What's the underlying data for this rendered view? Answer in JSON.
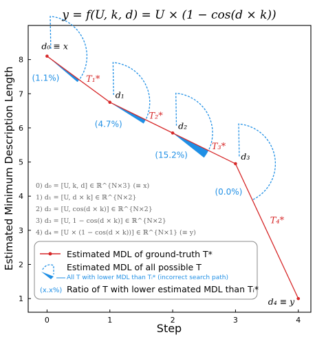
{
  "chart_data": {
    "type": "line",
    "title": "y = f(U, k, d) = U × (1 − cos(d × k))",
    "xlabel": "Step",
    "ylabel": "Estimated Minimum Description Length",
    "xlim": [
      -0.3,
      4.2
    ],
    "ylim": [
      0.6,
      9.0
    ],
    "x_ticks": [
      "0",
      "1",
      "2",
      "3",
      "4"
    ],
    "y_ticks": [
      "1",
      "2",
      "3",
      "4",
      "5",
      "6",
      "7",
      "8"
    ],
    "grid": false,
    "series": [
      {
        "name": "Estimated MDL of ground-truth T*",
        "x": [
          0,
          1,
          2,
          3,
          4
        ],
        "y": [
          8.1,
          6.75,
          5.85,
          4.95,
          1.0
        ],
        "color": "#d62728"
      }
    ],
    "point_labels": [
      {
        "label": "d₀ ≡ x",
        "x": 0,
        "y": 8.1
      },
      {
        "label": "d₁",
        "x": 1,
        "y": 6.75
      },
      {
        "label": "d₂",
        "x": 2,
        "y": 5.85
      },
      {
        "label": "d₃",
        "x": 3,
        "y": 4.95
      },
      {
        "label": "d₄ ≡ y",
        "x": 4,
        "y": 1.0
      }
    ],
    "segment_labels": [
      "T₁*",
      "T₂*",
      "T₃*",
      "T₄*"
    ],
    "ratios": [
      {
        "step": 0,
        "text": "(1.1%)",
        "value": 1.1
      },
      {
        "step": 1,
        "text": "(4.7%)",
        "value": 4.7
      },
      {
        "step": 2,
        "text": "(15.2%)",
        "value": 15.2
      },
      {
        "step": 3,
        "text": "(0.0%)",
        "value": 0.0
      }
    ],
    "annotations": [
      "0) d₀ = [U, k, d] ∈ ℝ^{N×3} (≡ x)",
      "1) d₁ = [U, d × k] ∈ ℝ^{N×2}",
      "2) d₂ = [U, cos(d × k)] ∈ ℝ^{N×2}",
      "3) d₃ = [U, 1 − cos(d × k)] ∈ ℝ^{N×2}",
      "4) d₄ = [U × (1 − cos(d × k))] ∈ ℝ^{N×1} (≡ y)"
    ],
    "legend": {
      "placement": "lower-left",
      "line": "Estimated MDL of ground-truth T*",
      "all": "Estimated MDL of all possible T",
      "lower": "All T with lower MDL than Tᵢ* (incorrect search path)",
      "ratio_sym": "(x.x%)",
      "ratio": "Ratio of T with lower estimated MDL than Tᵢ*"
    },
    "colors": {
      "line": "#d62728",
      "accent": "#1f8fe5",
      "annotation": "#666666",
      "axis": "#000000"
    }
  }
}
